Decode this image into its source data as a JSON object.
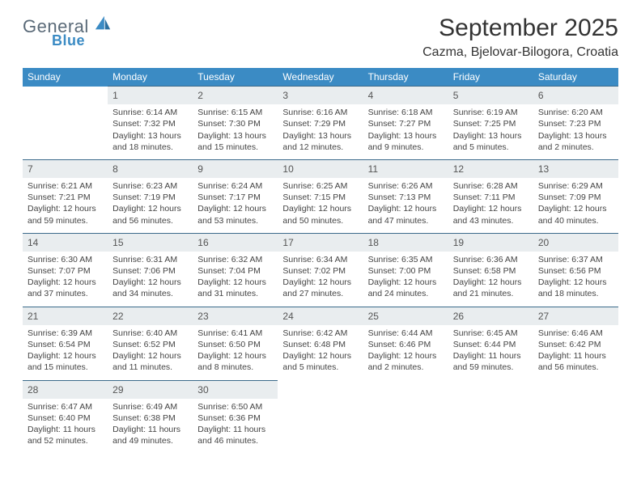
{
  "brand": {
    "name1": "General",
    "name2": "Blue",
    "text_color": "#5a6a78",
    "accent_color": "#3b8bc4"
  },
  "title": "September 2025",
  "location": "Cazma, Bjelovar-Bilogora, Croatia",
  "colors": {
    "header_bg": "#3b8bc4",
    "header_fg": "#ffffff",
    "daynum_bg": "#e9edef",
    "daynum_border": "#3b6a8a",
    "text": "#444444",
    "background": "#ffffff"
  },
  "typography": {
    "title_fontsize": 30,
    "location_fontsize": 16,
    "weekday_fontsize": 12,
    "daynum_fontsize": 12,
    "cell_fontsize": 10.5
  },
  "weekdays": [
    "Sunday",
    "Monday",
    "Tuesday",
    "Wednesday",
    "Thursday",
    "Friday",
    "Saturday"
  ],
  "weeks": [
    {
      "nums": [
        "",
        "1",
        "2",
        "3",
        "4",
        "5",
        "6"
      ],
      "cells": [
        null,
        {
          "sunrise": "Sunrise: 6:14 AM",
          "sunset": "Sunset: 7:32 PM",
          "day1": "Daylight: 13 hours",
          "day2": "and 18 minutes."
        },
        {
          "sunrise": "Sunrise: 6:15 AM",
          "sunset": "Sunset: 7:30 PM",
          "day1": "Daylight: 13 hours",
          "day2": "and 15 minutes."
        },
        {
          "sunrise": "Sunrise: 6:16 AM",
          "sunset": "Sunset: 7:29 PM",
          "day1": "Daylight: 13 hours",
          "day2": "and 12 minutes."
        },
        {
          "sunrise": "Sunrise: 6:18 AM",
          "sunset": "Sunset: 7:27 PM",
          "day1": "Daylight: 13 hours",
          "day2": "and 9 minutes."
        },
        {
          "sunrise": "Sunrise: 6:19 AM",
          "sunset": "Sunset: 7:25 PM",
          "day1": "Daylight: 13 hours",
          "day2": "and 5 minutes."
        },
        {
          "sunrise": "Sunrise: 6:20 AM",
          "sunset": "Sunset: 7:23 PM",
          "day1": "Daylight: 13 hours",
          "day2": "and 2 minutes."
        }
      ]
    },
    {
      "nums": [
        "7",
        "8",
        "9",
        "10",
        "11",
        "12",
        "13"
      ],
      "cells": [
        {
          "sunrise": "Sunrise: 6:21 AM",
          "sunset": "Sunset: 7:21 PM",
          "day1": "Daylight: 12 hours",
          "day2": "and 59 minutes."
        },
        {
          "sunrise": "Sunrise: 6:23 AM",
          "sunset": "Sunset: 7:19 PM",
          "day1": "Daylight: 12 hours",
          "day2": "and 56 minutes."
        },
        {
          "sunrise": "Sunrise: 6:24 AM",
          "sunset": "Sunset: 7:17 PM",
          "day1": "Daylight: 12 hours",
          "day2": "and 53 minutes."
        },
        {
          "sunrise": "Sunrise: 6:25 AM",
          "sunset": "Sunset: 7:15 PM",
          "day1": "Daylight: 12 hours",
          "day2": "and 50 minutes."
        },
        {
          "sunrise": "Sunrise: 6:26 AM",
          "sunset": "Sunset: 7:13 PM",
          "day1": "Daylight: 12 hours",
          "day2": "and 47 minutes."
        },
        {
          "sunrise": "Sunrise: 6:28 AM",
          "sunset": "Sunset: 7:11 PM",
          "day1": "Daylight: 12 hours",
          "day2": "and 43 minutes."
        },
        {
          "sunrise": "Sunrise: 6:29 AM",
          "sunset": "Sunset: 7:09 PM",
          "day1": "Daylight: 12 hours",
          "day2": "and 40 minutes."
        }
      ]
    },
    {
      "nums": [
        "14",
        "15",
        "16",
        "17",
        "18",
        "19",
        "20"
      ],
      "cells": [
        {
          "sunrise": "Sunrise: 6:30 AM",
          "sunset": "Sunset: 7:07 PM",
          "day1": "Daylight: 12 hours",
          "day2": "and 37 minutes."
        },
        {
          "sunrise": "Sunrise: 6:31 AM",
          "sunset": "Sunset: 7:06 PM",
          "day1": "Daylight: 12 hours",
          "day2": "and 34 minutes."
        },
        {
          "sunrise": "Sunrise: 6:32 AM",
          "sunset": "Sunset: 7:04 PM",
          "day1": "Daylight: 12 hours",
          "day2": "and 31 minutes."
        },
        {
          "sunrise": "Sunrise: 6:34 AM",
          "sunset": "Sunset: 7:02 PM",
          "day1": "Daylight: 12 hours",
          "day2": "and 27 minutes."
        },
        {
          "sunrise": "Sunrise: 6:35 AM",
          "sunset": "Sunset: 7:00 PM",
          "day1": "Daylight: 12 hours",
          "day2": "and 24 minutes."
        },
        {
          "sunrise": "Sunrise: 6:36 AM",
          "sunset": "Sunset: 6:58 PM",
          "day1": "Daylight: 12 hours",
          "day2": "and 21 minutes."
        },
        {
          "sunrise": "Sunrise: 6:37 AM",
          "sunset": "Sunset: 6:56 PM",
          "day1": "Daylight: 12 hours",
          "day2": "and 18 minutes."
        }
      ]
    },
    {
      "nums": [
        "21",
        "22",
        "23",
        "24",
        "25",
        "26",
        "27"
      ],
      "cells": [
        {
          "sunrise": "Sunrise: 6:39 AM",
          "sunset": "Sunset: 6:54 PM",
          "day1": "Daylight: 12 hours",
          "day2": "and 15 minutes."
        },
        {
          "sunrise": "Sunrise: 6:40 AM",
          "sunset": "Sunset: 6:52 PM",
          "day1": "Daylight: 12 hours",
          "day2": "and 11 minutes."
        },
        {
          "sunrise": "Sunrise: 6:41 AM",
          "sunset": "Sunset: 6:50 PM",
          "day1": "Daylight: 12 hours",
          "day2": "and 8 minutes."
        },
        {
          "sunrise": "Sunrise: 6:42 AM",
          "sunset": "Sunset: 6:48 PM",
          "day1": "Daylight: 12 hours",
          "day2": "and 5 minutes."
        },
        {
          "sunrise": "Sunrise: 6:44 AM",
          "sunset": "Sunset: 6:46 PM",
          "day1": "Daylight: 12 hours",
          "day2": "and 2 minutes."
        },
        {
          "sunrise": "Sunrise: 6:45 AM",
          "sunset": "Sunset: 6:44 PM",
          "day1": "Daylight: 11 hours",
          "day2": "and 59 minutes."
        },
        {
          "sunrise": "Sunrise: 6:46 AM",
          "sunset": "Sunset: 6:42 PM",
          "day1": "Daylight: 11 hours",
          "day2": "and 56 minutes."
        }
      ]
    },
    {
      "nums": [
        "28",
        "29",
        "30",
        "",
        "",
        "",
        ""
      ],
      "cells": [
        {
          "sunrise": "Sunrise: 6:47 AM",
          "sunset": "Sunset: 6:40 PM",
          "day1": "Daylight: 11 hours",
          "day2": "and 52 minutes."
        },
        {
          "sunrise": "Sunrise: 6:49 AM",
          "sunset": "Sunset: 6:38 PM",
          "day1": "Daylight: 11 hours",
          "day2": "and 49 minutes."
        },
        {
          "sunrise": "Sunrise: 6:50 AM",
          "sunset": "Sunset: 6:36 PM",
          "day1": "Daylight: 11 hours",
          "day2": "and 46 minutes."
        },
        null,
        null,
        null,
        null
      ]
    }
  ]
}
